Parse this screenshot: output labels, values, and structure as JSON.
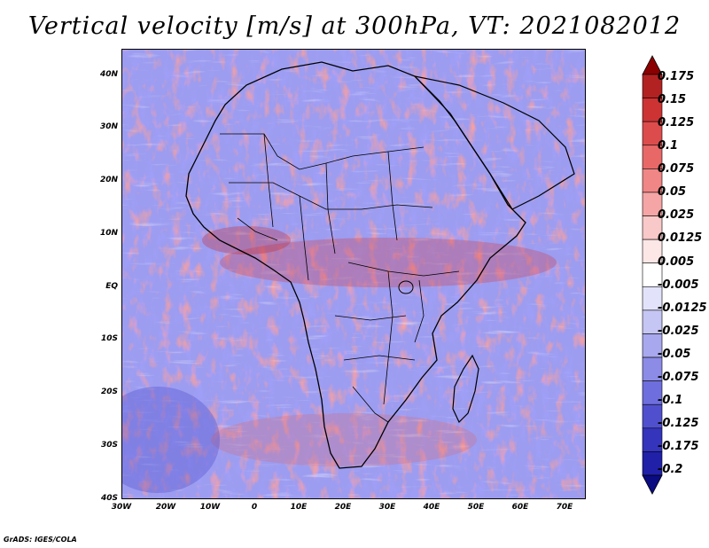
{
  "title": "Vertical velocity [m/s] at 300hPa, VT: 2021082012",
  "footer": "GrADS: IGES/COLA",
  "map": {
    "lat_labels": [
      "40N",
      "30N",
      "20N",
      "10N",
      "EQ",
      "10S",
      "20S",
      "30S",
      "40S"
    ],
    "lon_labels": [
      "30W",
      "20W",
      "10W",
      "0",
      "10E",
      "20E",
      "30E",
      "40E",
      "50E",
      "60E",
      "70E"
    ],
    "extent": {
      "lon_min": -30,
      "lon_max": 75,
      "lat_min": -40,
      "lat_max": 45
    }
  },
  "colorbar": {
    "labels": [
      "0.175",
      "0.15",
      "0.125",
      "0.1",
      "0.075",
      "0.05",
      "0.025",
      "0.0125",
      "0.005",
      "-0.005",
      "-0.0125",
      "-0.025",
      "-0.05",
      "-0.075",
      "-0.1",
      "-0.125",
      "-0.175",
      "-0.2"
    ],
    "colors": [
      "#8b0000",
      "#b22222",
      "#cd3333",
      "#dd4c4c",
      "#e86868",
      "#f08686",
      "#f5a5a5",
      "#f9c8c8",
      "#fde6e6",
      "#ffffff",
      "#e2e2fb",
      "#c6c6f5",
      "#a8a8ee",
      "#8c8ce6",
      "#6e6ede",
      "#5050cf",
      "#3434bd",
      "#2020a8",
      "#0b0b82"
    ]
  }
}
